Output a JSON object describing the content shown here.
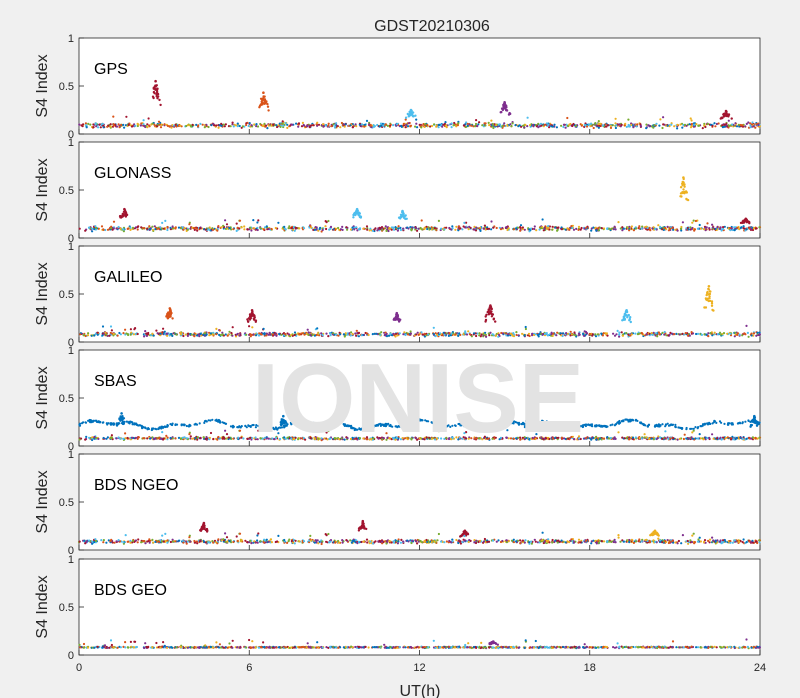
{
  "chart_data": {
    "type": "scatter",
    "title": "GDST20210306",
    "xlabel": "UT(h)",
    "ylabel": "S4 Index",
    "xlim": [
      0,
      24
    ],
    "xticks": [
      "0",
      "6",
      "12",
      "18",
      "24"
    ],
    "ylim": [
      0,
      1
    ],
    "yticks": [
      "0",
      "0.5",
      "1"
    ],
    "watermark": "IONISE",
    "colors": [
      "#0072BD",
      "#D95319",
      "#EDB120",
      "#7E2F8E",
      "#77AC30",
      "#4DBEEE",
      "#A2142F"
    ],
    "panels": [
      {
        "name": "GPS",
        "baseline": 0.09,
        "noise": 0.035,
        "peaks": [
          {
            "x": 2.7,
            "y": 0.55,
            "color": "#A2142F"
          },
          {
            "x": 6.5,
            "y": 0.43,
            "color": "#D95319"
          },
          {
            "x": 11.7,
            "y": 0.25,
            "color": "#4DBEEE"
          },
          {
            "x": 15.0,
            "y": 0.33,
            "color": "#7E2F8E"
          },
          {
            "x": 22.8,
            "y": 0.24,
            "color": "#A2142F"
          }
        ]
      },
      {
        "name": "GLONASS",
        "baseline": 0.1,
        "noise": 0.035,
        "peaks": [
          {
            "x": 1.6,
            "y": 0.3,
            "color": "#A2142F"
          },
          {
            "x": 9.8,
            "y": 0.3,
            "color": "#4DBEEE"
          },
          {
            "x": 11.4,
            "y": 0.28,
            "color": "#4DBEEE"
          },
          {
            "x": 21.3,
            "y": 0.63,
            "color": "#EDB120"
          },
          {
            "x": 23.5,
            "y": 0.2,
            "color": "#A2142F"
          }
        ]
      },
      {
        "name": "GALILEO",
        "baseline": 0.08,
        "noise": 0.03,
        "peaks": [
          {
            "x": 3.2,
            "y": 0.35,
            "color": "#D95319"
          },
          {
            "x": 6.1,
            "y": 0.33,
            "color": "#A2142F"
          },
          {
            "x": 11.2,
            "y": 0.3,
            "color": "#7E2F8E"
          },
          {
            "x": 14.5,
            "y": 0.38,
            "color": "#A2142F"
          },
          {
            "x": 19.3,
            "y": 0.33,
            "color": "#4DBEEE"
          },
          {
            "x": 22.2,
            "y": 0.58,
            "color": "#EDB120"
          }
        ]
      },
      {
        "name": "SBAS",
        "baseline": 0.08,
        "noise": 0.02,
        "upper_series": {
          "color": "#0072BD",
          "level": 0.22
        },
        "peaks": [
          {
            "x": 1.5,
            "y": 0.34,
            "color": "#0072BD"
          },
          {
            "x": 7.2,
            "y": 0.31,
            "color": "#0072BD"
          },
          {
            "x": 15.8,
            "y": 0.28,
            "color": "#0072BD"
          },
          {
            "x": 23.8,
            "y": 0.31,
            "color": "#0072BD"
          }
        ]
      },
      {
        "name": "BDS NGEO",
        "baseline": 0.09,
        "noise": 0.03,
        "peaks": [
          {
            "x": 4.4,
            "y": 0.28,
            "color": "#A2142F"
          },
          {
            "x": 10.0,
            "y": 0.3,
            "color": "#A2142F"
          },
          {
            "x": 13.6,
            "y": 0.2,
            "color": "#A2142F"
          },
          {
            "x": 20.3,
            "y": 0.2,
            "color": "#EDB120"
          }
        ]
      },
      {
        "name": "BDS GEO",
        "baseline": 0.08,
        "noise": 0.01,
        "peaks": [
          {
            "x": 14.6,
            "y": 0.14,
            "color": "#7E2F8E"
          }
        ]
      }
    ]
  }
}
